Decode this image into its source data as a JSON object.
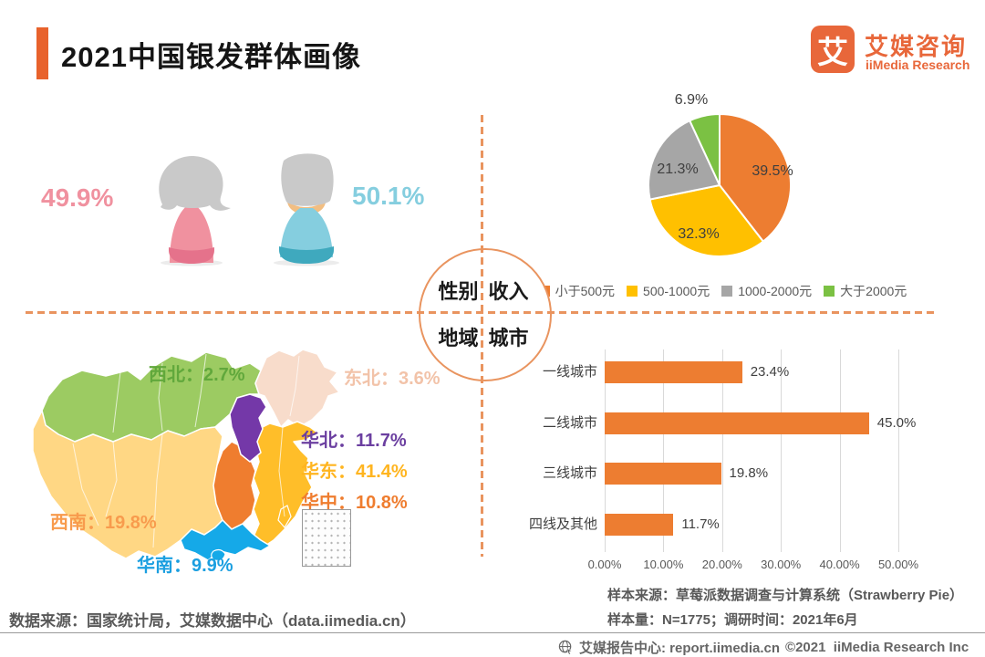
{
  "header": {
    "title": "2021中国银发群体画像",
    "logo": {
      "symbol": "艾",
      "name_cn": "艾媒咨询",
      "name_en": "iiMedia Research"
    },
    "accent_color": "#E8622C"
  },
  "center_wheel": {
    "top_left": "性别",
    "top_right": "收入",
    "bottom_left": "地域",
    "bottom_right": "城市"
  },
  "chart_data": [
    {
      "type": "icon-comparison",
      "title": "性别",
      "icons": [
        "female-figure",
        "male-figure"
      ],
      "values": [
        49.9,
        50.1
      ],
      "value_labels": [
        "49.9%",
        "50.1%"
      ],
      "colors": [
        "#F0919F",
        "#85CEDF"
      ]
    },
    {
      "type": "pie",
      "title": "收入",
      "labels": [
        "小于500元",
        "500-1000元",
        "1000-2000元",
        "大于2000元"
      ],
      "values": [
        39.5,
        32.3,
        21.3,
        6.9
      ],
      "value_labels": [
        "39.5%",
        "32.3%",
        "21.3%",
        "6.9%"
      ],
      "colors": [
        "#ED7D31",
        "#FFC000",
        "#A6A6A6",
        "#7BC143"
      ],
      "legend_position": "bottom",
      "start_angle_deg": 0,
      "direction": "clockwise"
    },
    {
      "type": "map",
      "title": "地域",
      "regions": [
        {
          "name": "西北",
          "value": 2.7,
          "label": "西北：2.7%",
          "fill": "#9CCB62",
          "label_color": "#61A83C"
        },
        {
          "name": "东北",
          "value": 3.6,
          "label": "东北：3.6%",
          "fill": "#F8DCCB",
          "label_color": "#F2C3A9"
        },
        {
          "name": "华北",
          "value": 11.7,
          "label": "华北：11.7%",
          "fill": "#7438A8",
          "label_color": "#6B3FA0"
        },
        {
          "name": "华东",
          "value": 41.4,
          "label": "华东：41.4%",
          "fill": "#FFBE29",
          "label_color": "#FFB520"
        },
        {
          "name": "华中",
          "value": 10.8,
          "label": "华中：10.8%",
          "fill": "#EF7D2F",
          "label_color": "#EF7D2F"
        },
        {
          "name": "西南",
          "value": 19.8,
          "label": "西南：19.8%",
          "fill": "#FFD784",
          "label_color": "#F89B4D"
        },
        {
          "name": "华南",
          "value": 9.9,
          "label": "华南：9.9%",
          "fill": "#15A9E8",
          "label_color": "#1B9FE0"
        }
      ]
    },
    {
      "type": "bar",
      "title": "城市",
      "orientation": "horizontal",
      "categories": [
        "一线城市",
        "二线城市",
        "三线城市",
        "四线及其他"
      ],
      "values": [
        23.4,
        45.0,
        19.8,
        11.7
      ],
      "value_labels": [
        "23.4%",
        "45.0%",
        "19.8%",
        "11.7%"
      ],
      "x_ticks": [
        "0.00%",
        "10.00%",
        "20.00%",
        "30.00%",
        "40.00%",
        "50.00%"
      ],
      "xlim": [
        0,
        50
      ],
      "bar_color": "#ED7D31",
      "grid": true
    }
  ],
  "footnotes": {
    "data_source": "数据来源：国家统计局，艾媒数据中心（data.iimedia.cn）",
    "sample_source": "样本来源：草莓派数据调查与计算系统（Strawberry Pie）",
    "sample_info": "样本量：N=1775；调研时间：2021年6月"
  },
  "footer": {
    "icon": "globe-icon",
    "label": "艾媒报告中心: report.iimedia.cn",
    "copyright": "©2021  iiMedia Research Inc"
  }
}
